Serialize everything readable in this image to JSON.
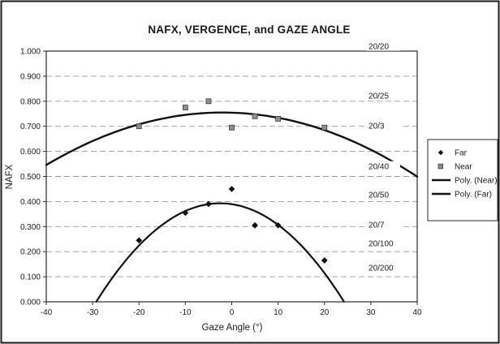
{
  "chart_data": {
    "type": "scatter",
    "title": "NAFX, VERGENCE, and GAZE ANGLE",
    "xlabel": "Gaze Angle (°)",
    "ylabel": "NAFX",
    "xlim": [
      -40,
      40
    ],
    "ylim": [
      0,
      1.0
    ],
    "x_ticks": [
      -40,
      -30,
      -20,
      -10,
      0,
      10,
      20,
      30,
      40
    ],
    "y_ticks": [
      "0.000",
      "0.100",
      "0.200",
      "0.300",
      "0.400",
      "0.500",
      "0.600",
      "0.700",
      "0.800",
      "0.900",
      "1.000"
    ],
    "grid": "horizontal-dashed",
    "grid_color": "#9a9a9a",
    "line_color": "#111111",
    "series": [
      {
        "name": "Far",
        "marker": "diamond",
        "color": "#111111",
        "points": [
          [
            -20,
            0.245
          ],
          [
            -10,
            0.355
          ],
          [
            -5,
            0.39
          ],
          [
            0,
            0.45
          ],
          [
            5,
            0.305
          ],
          [
            10,
            0.305
          ],
          [
            20,
            0.165
          ]
        ]
      },
      {
        "name": "Near",
        "marker": "square",
        "color": "#8f8f8f",
        "points": [
          [
            -20,
            0.7
          ],
          [
            -10,
            0.775
          ],
          [
            -5,
            0.8
          ],
          [
            0,
            0.695
          ],
          [
            5,
            0.74
          ],
          [
            10,
            0.73
          ],
          [
            20,
            0.695
          ]
        ]
      }
    ],
    "fits": [
      {
        "name": "Poly. (Near)",
        "a": -0.000145,
        "h": -2,
        "k": 0.755,
        "x_range": [
          -40,
          40
        ],
        "width": 2.4
      },
      {
        "name": "Poly. (Far)",
        "a": -0.00055,
        "h": -2.5,
        "k": 0.393,
        "x_range": [
          -29.2,
          24.2
        ],
        "width": 2.2
      }
    ],
    "acuity_labels": [
      {
        "label": "20/20",
        "y": 1.019
      },
      {
        "label": "20/25",
        "y": 0.822
      },
      {
        "label": "20/3",
        "y": 0.702
      },
      {
        "label": "20/40",
        "y": 0.54
      },
      {
        "label": "20/50",
        "y": 0.427
      },
      {
        "label": "20/7",
        "y": 0.307
      },
      {
        "label": "20/100",
        "y": 0.233
      },
      {
        "label": "20/200",
        "y": 0.136
      }
    ],
    "legend": {
      "position": "right",
      "entries": [
        {
          "label": "Far",
          "type": "marker",
          "marker": "diamond"
        },
        {
          "label": "Near",
          "type": "marker",
          "marker": "square"
        },
        {
          "label": "Poly. (Near)",
          "type": "line"
        },
        {
          "label": "Poly. (Far)",
          "type": "line"
        }
      ]
    }
  }
}
